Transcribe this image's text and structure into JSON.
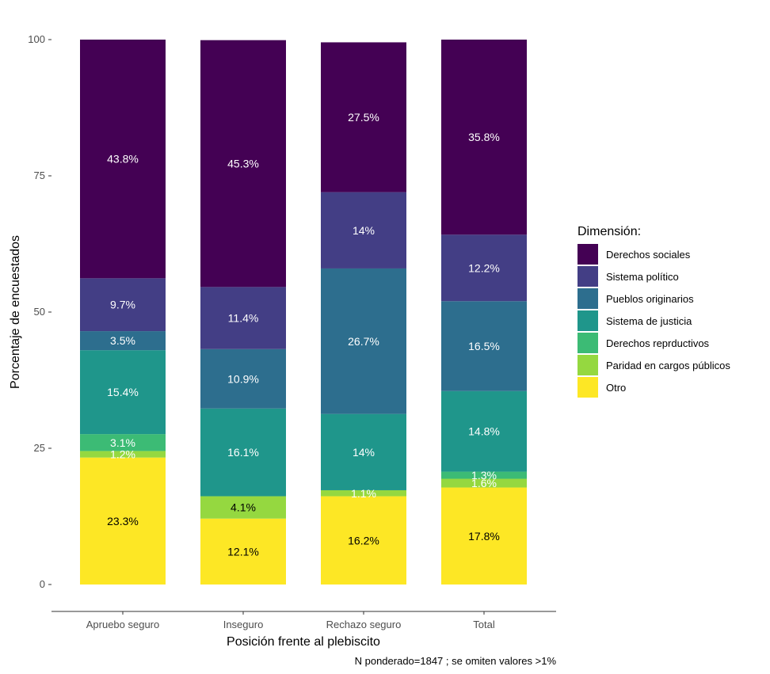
{
  "chart_data": {
    "type": "bar",
    "stacked": true,
    "xlabel": "Posición frente al plebiscito",
    "ylabel": "Porcentaje de encuestados",
    "caption": "N ponderado=1847  ; se omiten valores >1%",
    "ylim": [
      0,
      100
    ],
    "yticks": [
      0,
      25,
      50,
      75,
      100
    ],
    "grid": false,
    "legend": {
      "title": "Dimensión:",
      "position": "right"
    },
    "categories": [
      "Apruebo seguro",
      "Inseguro",
      "Rechazo seguro",
      "Total"
    ],
    "series": [
      {
        "name": "Otro",
        "color": "#FDE725",
        "values": [
          23.3,
          12.1,
          16.2,
          17.8
        ],
        "labels": [
          "23.3%",
          "12.1%",
          "16.2%",
          "17.8%"
        ]
      },
      {
        "name": "Paridad en cargos públicos",
        "color": "#95D840",
        "values": [
          1.2,
          4.1,
          1.1,
          1.6
        ],
        "labels": [
          "1.2%",
          "4.1%",
          "1.1%",
          "1.6%"
        ]
      },
      {
        "name": "Derechos reprductivos",
        "color": "#3CBB75",
        "values": [
          3.1,
          0,
          0,
          1.3
        ],
        "labels": [
          "3.1%",
          "",
          "",
          "1.3%"
        ]
      },
      {
        "name": "Sistema de justicia",
        "color": "#1F968B",
        "values": [
          15.4,
          16.1,
          14.0,
          14.8
        ],
        "labels": [
          "15.4%",
          "16.1%",
          "14%",
          "14.8%"
        ]
      },
      {
        "name": "Pueblos originarios",
        "color": "#2D6E8E",
        "values": [
          3.5,
          10.9,
          26.7,
          16.5
        ],
        "labels": [
          "3.5%",
          "10.9%",
          "26.7%",
          "16.5%"
        ]
      },
      {
        "name": "Sistema político",
        "color": "#433E85",
        "values": [
          9.7,
          11.4,
          14.0,
          12.2
        ],
        "labels": [
          "9.7%",
          "11.4%",
          "14%",
          "12.2%"
        ]
      },
      {
        "name": "Derechos sociales",
        "color": "#440154",
        "values": [
          43.8,
          45.3,
          27.5,
          35.8
        ],
        "labels": [
          "43.8%",
          "45.3%",
          "27.5%",
          "35.8%"
        ]
      }
    ],
    "legend_order": [
      "Derechos sociales",
      "Sistema político",
      "Pueblos originarios",
      "Sistema de justicia",
      "Derechos reprductivos",
      "Paridad en cargos públicos",
      "Otro"
    ]
  }
}
